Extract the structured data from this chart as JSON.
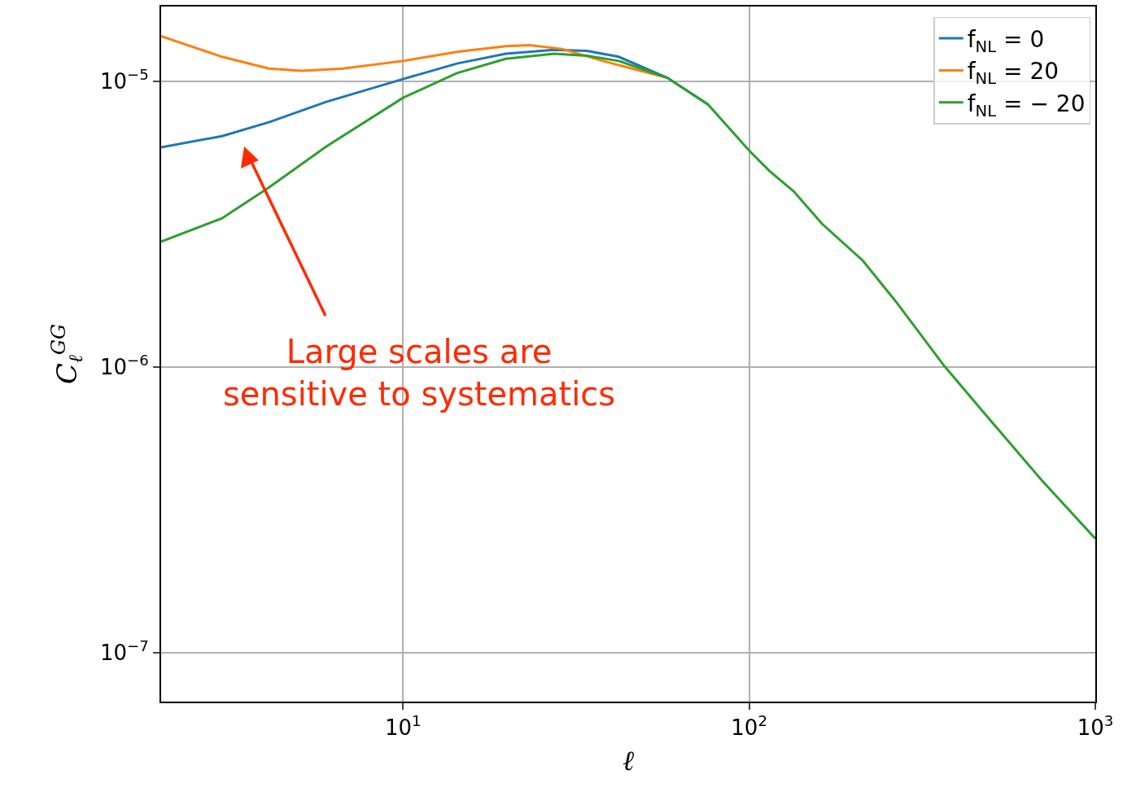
{
  "chart_data": {
    "type": "line",
    "xlabel": "ℓ",
    "ylabel": "C$_{ℓ}$$^{GG}$",
    "log": "xy",
    "grid": true,
    "legend": "top right",
    "line_style": "solid",
    "marker": "none",
    "xlim": [
      2,
      1000
    ],
    "ylim": [
      6.75e-08,
      1.83e-05
    ],
    "xticks": [
      {
        "value": 10,
        "label": "10$^{1}$"
      },
      {
        "value": 100,
        "label": "10$^{2}$"
      },
      {
        "value": 1000,
        "label": "10$^{3}$"
      }
    ],
    "yticks": [
      {
        "value": 1e-07,
        "label": "10$^{−7}$"
      },
      {
        "value": 1e-06,
        "label": "10$^{−6}$"
      },
      {
        "value": 1e-05,
        "label": "10$^{−5}$"
      }
    ],
    "series": [
      {
        "name": "f$_{NL}$ = 0",
        "color": "#1f77b4",
        "x": [
          2,
          3,
          4.1,
          6,
          10,
          14.3,
          19.8,
          27.3,
          34,
          42,
          58,
          76
        ],
        "values": [
          5.88e-06,
          6.44e-06,
          7.2e-06,
          8.49e-06,
          1.02e-05,
          1.155e-05,
          1.25e-05,
          1.29e-05,
          1.28e-05,
          1.22e-05,
          1.03e-05,
          8.32e-06
        ]
      },
      {
        "name": "f$_{NL}$ = 20",
        "color": "#ff7f0e",
        "x": [
          2,
          3,
          4.1,
          5.1,
          6.7,
          10,
          14.3,
          19.8,
          23.2,
          28.8,
          37.8,
          58
        ],
        "values": [
          1.44e-05,
          1.22e-05,
          1.11e-05,
          1.09e-05,
          1.11e-05,
          1.18e-05,
          1.27e-05,
          1.33e-05,
          1.34e-05,
          1.3e-05,
          1.18e-05,
          1.03e-05
        ]
      },
      {
        "name": "f$_{NL}$ = − 20",
        "color": "#2ca02c",
        "x": [
          2,
          3,
          4.1,
          6,
          10,
          14.3,
          19.8,
          27.3,
          34,
          42,
          58,
          76,
          100,
          114.5,
          134.6,
          162.6,
          213,
          265,
          366,
          506,
          700,
          1000
        ],
        "values": [
          2.75e-06,
          3.32e-06,
          4.26e-06,
          5.92e-06,
          8.77e-06,
          1.07e-05,
          1.2e-05,
          1.25e-05,
          1.23e-05,
          1.18e-05,
          1.03e-05,
          8.32e-06,
          5.73e-06,
          4.86e-06,
          4.12e-06,
          3.17e-06,
          2.36e-06,
          1.7e-06,
          1.01e-06,
          6.36e-07,
          4.02e-07,
          2.51e-07
        ]
      }
    ],
    "annotations": [
      "Large scales are\nsensitive to systematics"
    ]
  }
}
